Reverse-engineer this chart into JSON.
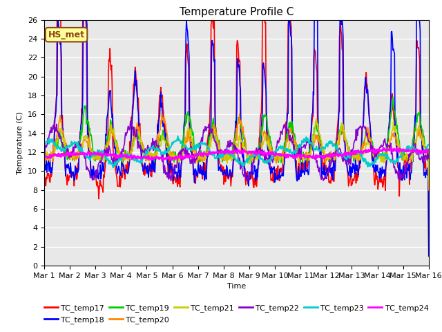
{
  "title": "Temperature Profile C",
  "xlabel": "Time",
  "ylabel": "Temperature (C)",
  "ylim": [
    0,
    26
  ],
  "xlim": [
    0,
    15
  ],
  "xtick_labels": [
    "Mar 1",
    "Mar 2",
    "Mar 3",
    "Mar 4",
    "Mar 5",
    "Mar 6",
    "Mar 7",
    "Mar 8",
    "Mar 9",
    "Mar 10",
    "Mar 11",
    "Mar 12",
    "Mar 13",
    "Mar 14",
    "Mar 15",
    "Mar 16"
  ],
  "annotation": "HS_met",
  "series_names": [
    "TC_temp17",
    "TC_temp18",
    "TC_temp19",
    "TC_temp20",
    "TC_temp21",
    "TC_temp22",
    "TC_temp23",
    "TC_temp24"
  ],
  "series_colors": [
    "#ff0000",
    "#0000ff",
    "#00cc00",
    "#ff8800",
    "#cccc00",
    "#8800cc",
    "#00cccc",
    "#ff00ff"
  ],
  "series_linewidths": [
    1.2,
    1.2,
    1.2,
    1.2,
    1.2,
    1.2,
    1.5,
    2.0
  ],
  "background_color": "#e8e8e8",
  "title_fontsize": 11,
  "axis_fontsize": 8,
  "legend_fontsize": 8
}
